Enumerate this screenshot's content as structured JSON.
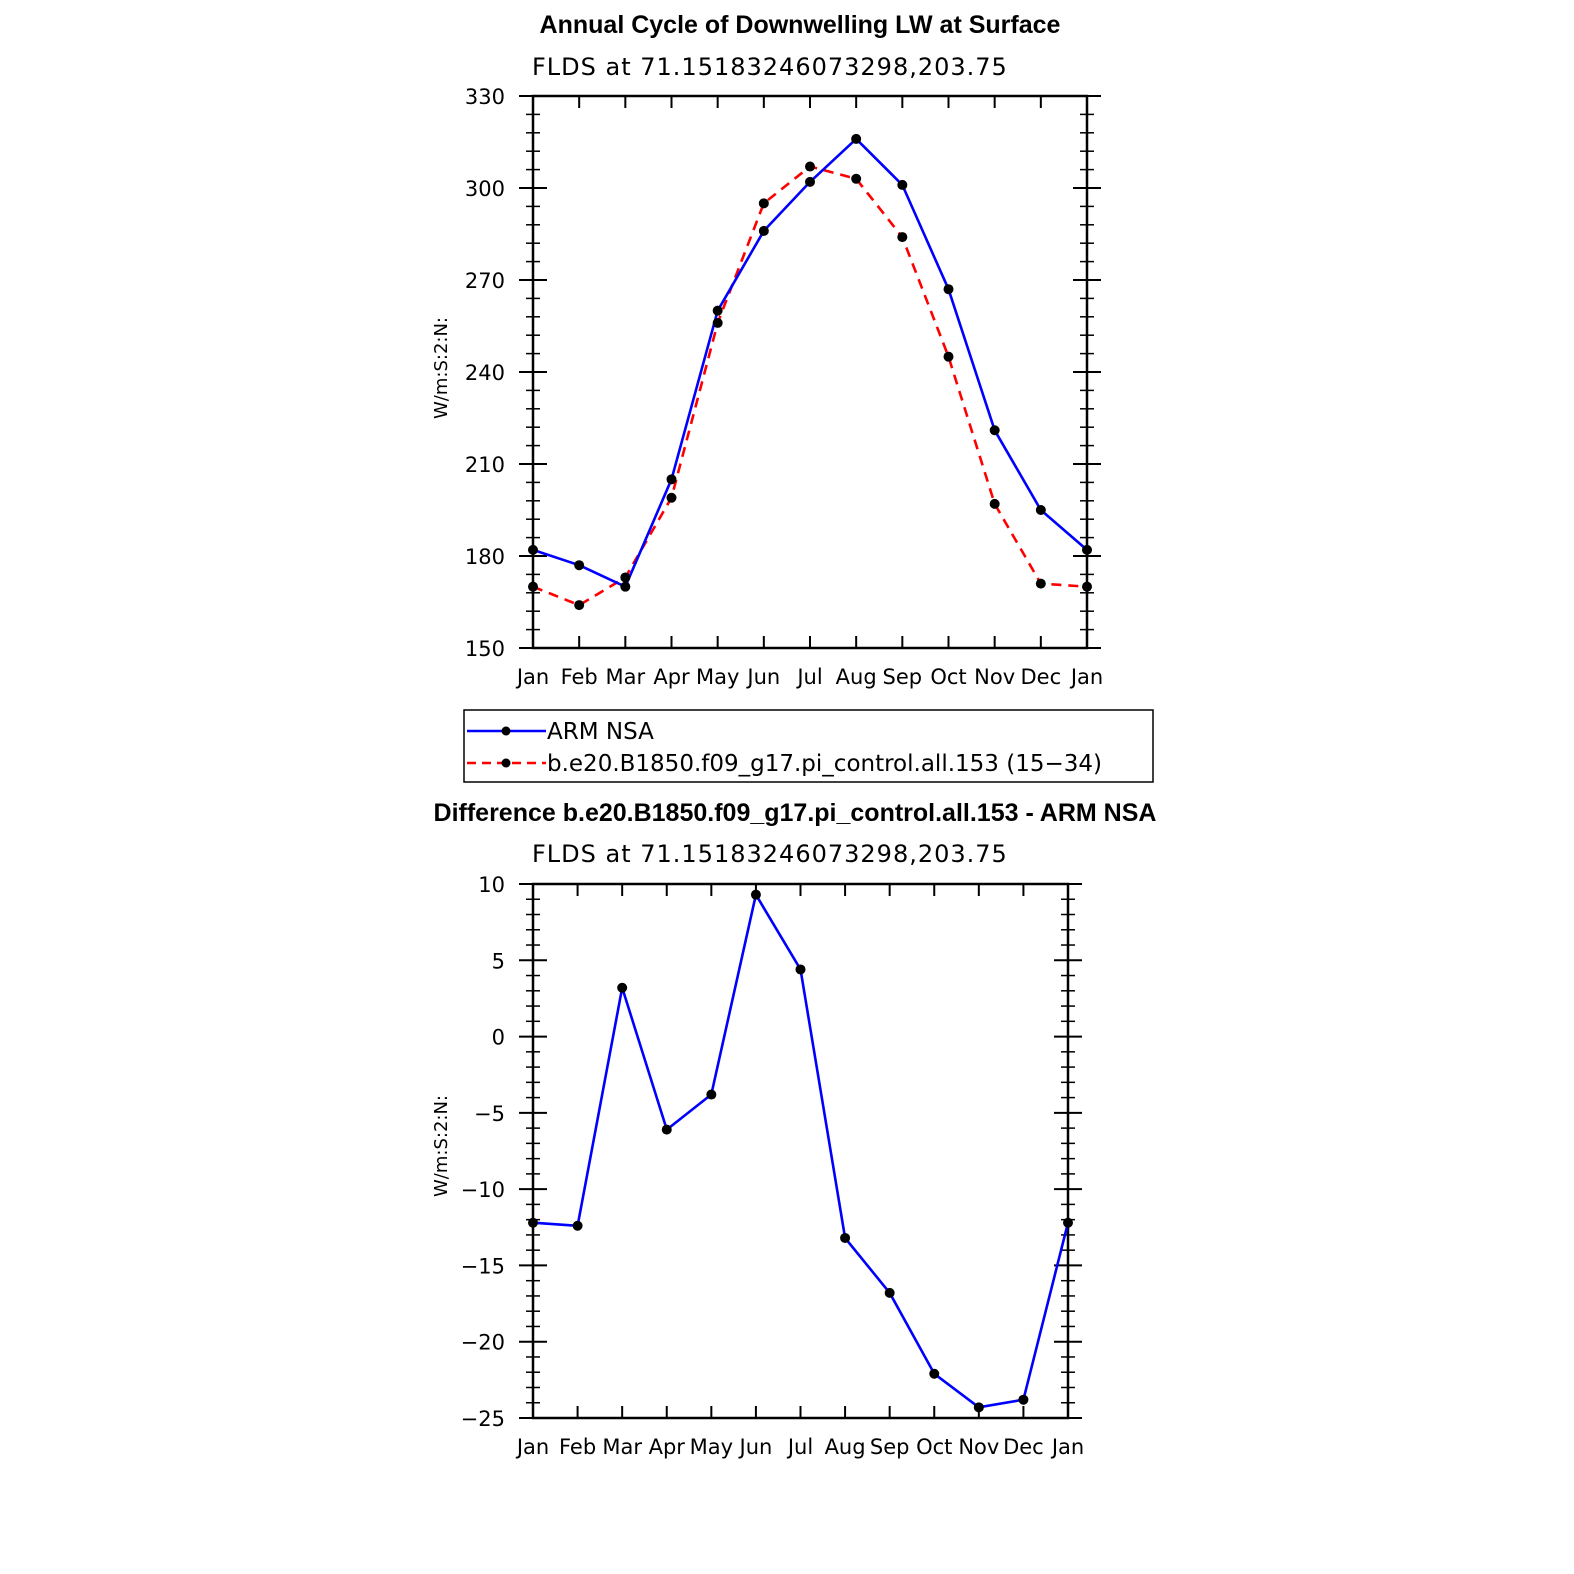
{
  "colors": {
    "obs": "#0000ff",
    "model": "#ff0000",
    "axis": "#000000",
    "marker": "#000000"
  },
  "chart_data": [
    {
      "type": "line",
      "title": "Annual Cycle of Downwelling LW at Surface",
      "subtitle": "FLDS at 71.15183246073298,203.75",
      "xlabel": "",
      "ylabel": "W/m:S:2:N:",
      "categories": [
        "Jan",
        "Feb",
        "Mar",
        "Apr",
        "May",
        "Jun",
        "Jul",
        "Aug",
        "Sep",
        "Oct",
        "Nov",
        "Dec",
        "Jan"
      ],
      "ylim": [
        150,
        330
      ],
      "yticks": [
        150,
        180,
        210,
        240,
        270,
        300,
        330
      ],
      "series": [
        {
          "name": "ARM NSA",
          "style": "solid",
          "color": "#0000ff",
          "values": [
            182,
            177,
            170,
            205,
            260,
            286,
            302,
            316,
            301,
            267,
            221,
            195,
            182
          ]
        },
        {
          "name": "b.e20.B1850.f09_g17.pi_control.all.153 (15−34)",
          "style": "dashed",
          "color": "#ff0000",
          "values": [
            170,
            164,
            173,
            199,
            256,
            295,
            307,
            303,
            284,
            245,
            197,
            171,
            170
          ]
        }
      ],
      "legend": {
        "position": "bottom"
      }
    },
    {
      "type": "line",
      "title": "Difference b.e20.B1850.f09_g17.pi_control.all.153 - ARM NSA",
      "subtitle": "FLDS at 71.15183246073298,203.75",
      "xlabel": "",
      "ylabel": "W/m:S:2:N:",
      "categories": [
        "Jan",
        "Feb",
        "Mar",
        "Apr",
        "May",
        "Jun",
        "Jul",
        "Aug",
        "Sep",
        "Oct",
        "Nov",
        "Dec",
        "Jan"
      ],
      "ylim": [
        -25,
        10
      ],
      "yticks": [
        -25,
        -20,
        -15,
        -10,
        -5,
        0,
        5,
        10
      ],
      "series": [
        {
          "name": "Difference",
          "style": "solid",
          "color": "#0000ff",
          "values": [
            -12.2,
            -12.4,
            3.2,
            -6.1,
            -3.8,
            9.3,
            4.4,
            -13.2,
            -16.8,
            -22.1,
            -24.3,
            -23.8,
            -12.2
          ]
        }
      ]
    }
  ]
}
